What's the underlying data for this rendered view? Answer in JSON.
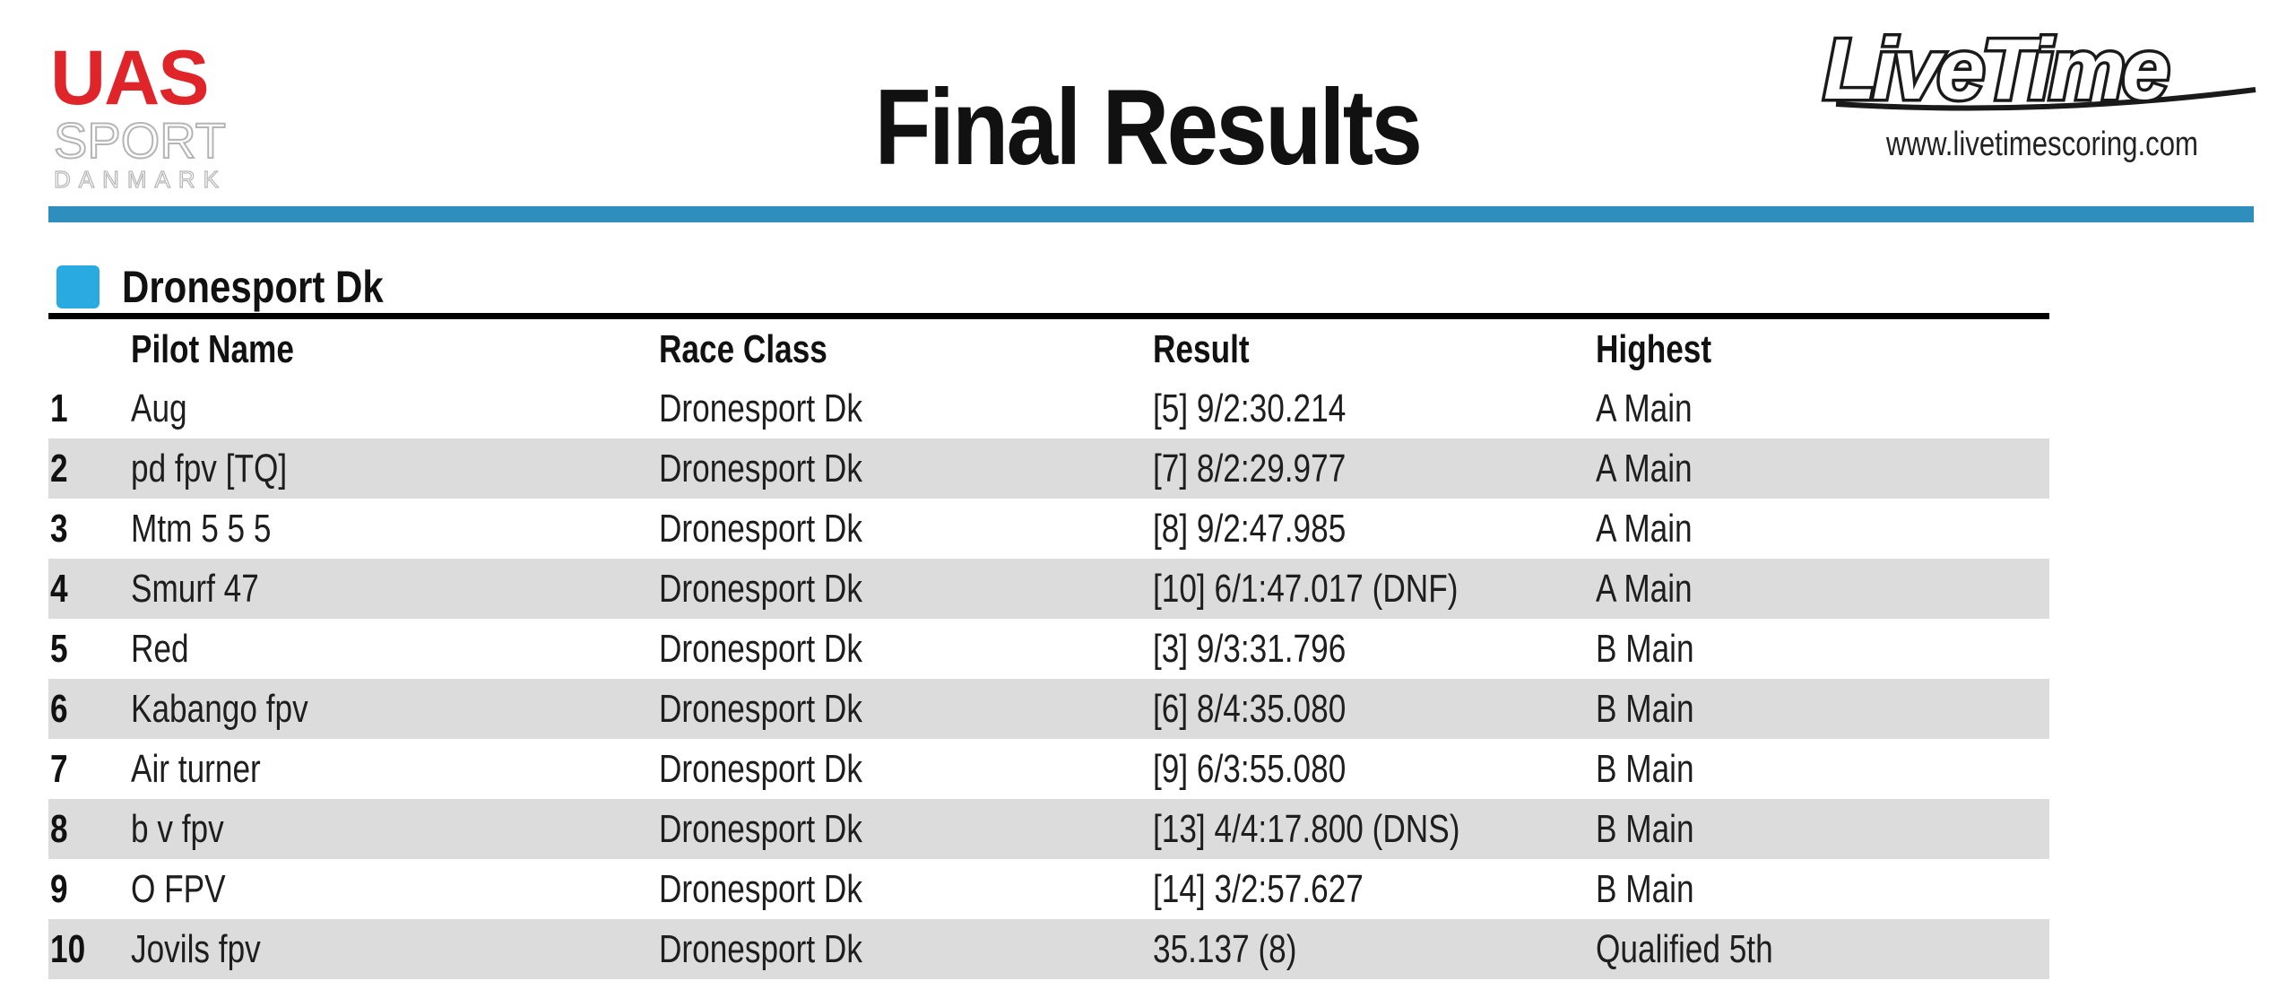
{
  "header": {
    "left_logo": {
      "top_word": "UAS",
      "middle_word": "SPORT",
      "bottom_word": "DANMARK",
      "accent_color": "#e0252a"
    },
    "title": "Final Results",
    "right_logo": {
      "wordmark": "LiveTime",
      "url": "www.livetimescoring.com"
    },
    "rule_color": "#2e8fbf"
  },
  "section": {
    "name": "Dronesport Dk",
    "swatch_color": "#29abe2"
  },
  "table": {
    "columns": {
      "position": "",
      "pilot_name": "Pilot Name",
      "race_class": "Race Class",
      "result": "Result",
      "highest": "Highest"
    },
    "rows": [
      {
        "pos": "1",
        "pilot": "Aug",
        "race_class": "Dronesport Dk",
        "result": "[5] 9/2:30.214",
        "highest": "A Main"
      },
      {
        "pos": "2",
        "pilot": "pd fpv [TQ]",
        "race_class": "Dronesport Dk",
        "result": "[7] 8/2:29.977",
        "highest": "A Main"
      },
      {
        "pos": "3",
        "pilot": "Mtm 5 5 5",
        "race_class": "Dronesport Dk",
        "result": "[8] 9/2:47.985",
        "highest": "A Main"
      },
      {
        "pos": "4",
        "pilot": "Smurf 47",
        "race_class": "Dronesport Dk",
        "result": "[10] 6/1:47.017 (DNF)",
        "highest": "A Main"
      },
      {
        "pos": "5",
        "pilot": "Red",
        "race_class": "Dronesport Dk",
        "result": "[3] 9/3:31.796",
        "highest": "B Main"
      },
      {
        "pos": "6",
        "pilot": "Kabango fpv",
        "race_class": "Dronesport Dk",
        "result": "[6] 8/4:35.080",
        "highest": "B Main"
      },
      {
        "pos": "7",
        "pilot": "Air turner",
        "race_class": "Dronesport Dk",
        "result": "[9] 6/3:55.080",
        "highest": "B Main"
      },
      {
        "pos": "8",
        "pilot": "b v fpv",
        "race_class": "Dronesport Dk",
        "result": "[13] 4/4:17.800 (DNS)",
        "highest": "B Main"
      },
      {
        "pos": "9",
        "pilot": "O FPV",
        "race_class": "Dronesport Dk",
        "result": "[14] 3/2:57.627",
        "highest": "B Main"
      },
      {
        "pos": "10",
        "pilot": "Jovils fpv",
        "race_class": "Dronesport Dk",
        "result": "35.137 (8)",
        "highest": "Qualified 5th"
      }
    ],
    "shade_color": "#dcdcdc"
  }
}
